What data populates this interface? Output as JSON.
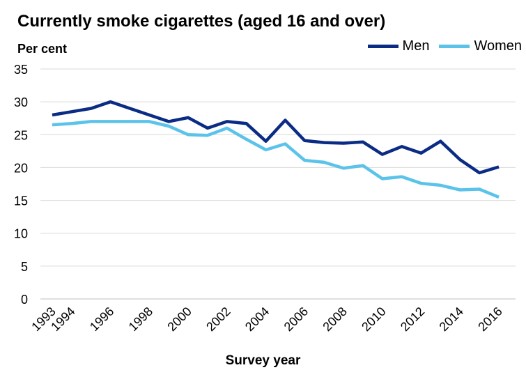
{
  "chart_data": {
    "type": "line",
    "title": "Currently smoke cigarettes (aged 16 and over)",
    "ylabel": "Per cent",
    "xlabel": "Survey year",
    "ylim": [
      0,
      35
    ],
    "yticks": [
      0,
      5,
      10,
      15,
      20,
      25,
      30,
      35
    ],
    "xticks": [
      1993,
      1994,
      1996,
      1998,
      2000,
      2002,
      2004,
      2006,
      2008,
      2010,
      2012,
      2014,
      2016
    ],
    "xlim": [
      1993,
      2016
    ],
    "grid": true,
    "legend": "top-right",
    "x": [
      1993,
      1994,
      1995,
      1996,
      1997,
      1998,
      1999,
      2000,
      2001,
      2002,
      2003,
      2004,
      2005,
      2006,
      2007,
      2008,
      2009,
      2010,
      2011,
      2012,
      2013,
      2014,
      2015,
      2016
    ],
    "series": [
      {
        "name": "Men",
        "color": "#0b2c84",
        "values": [
          28,
          28.5,
          29,
          30,
          29,
          28,
          27,
          27.6,
          26,
          27,
          26.7,
          24,
          27.2,
          24.1,
          23.8,
          23.7,
          23.9,
          22,
          23.2,
          22.2,
          24,
          21.2,
          19.2,
          20.1
        ]
      },
      {
        "name": "Women",
        "color": "#5bc3ea",
        "values": [
          26.5,
          26.7,
          27,
          27,
          27,
          27,
          26.3,
          25,
          24.9,
          26,
          24.3,
          22.7,
          23.6,
          21.1,
          20.8,
          19.9,
          20.3,
          18.3,
          18.6,
          17.6,
          17.3,
          16.6,
          16.7,
          15.5
        ]
      }
    ]
  }
}
